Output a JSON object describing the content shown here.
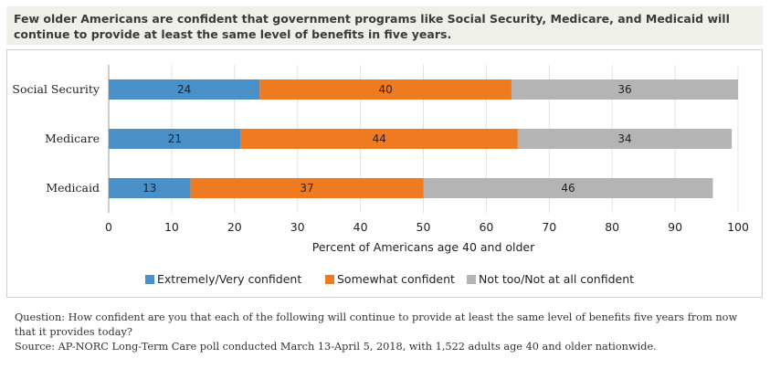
{
  "header": {
    "title": "Few older Americans are confident that government programs like Social Security, Medicare, and Medicaid will continue to provide at least the same level of benefits in five years."
  },
  "chart_data": {
    "type": "bar",
    "orientation": "horizontal",
    "stacked": true,
    "categories": [
      "Social Security",
      "Medicare",
      "Medicaid"
    ],
    "series": [
      {
        "name": "Extremely/Very confident",
        "color": "#4a90c8",
        "values": [
          24,
          21,
          13
        ]
      },
      {
        "name": "Somewhat confident",
        "color": "#ee7a22",
        "values": [
          40,
          44,
          37
        ]
      },
      {
        "name": "Not too/Not at all confident",
        "color": "#b4b4b4",
        "values": [
          36,
          34,
          46
        ]
      }
    ],
    "xlabel": "Percent of Americans age 40 and older",
    "xlim": [
      0,
      100
    ],
    "xticks": [
      0,
      10,
      20,
      30,
      40,
      50,
      60,
      70,
      80,
      90,
      100
    ],
    "grid": true,
    "legend_position": "bottom"
  },
  "notes": {
    "question": "Question: How confident are you that each of the following will continue to provide at least the same level of benefits five years from now that it provides today?",
    "source": "Source: AP-NORC Long-Term Care poll conducted March 13-April 5, 2018, with 1,522 adults age 40 and older nationwide."
  }
}
